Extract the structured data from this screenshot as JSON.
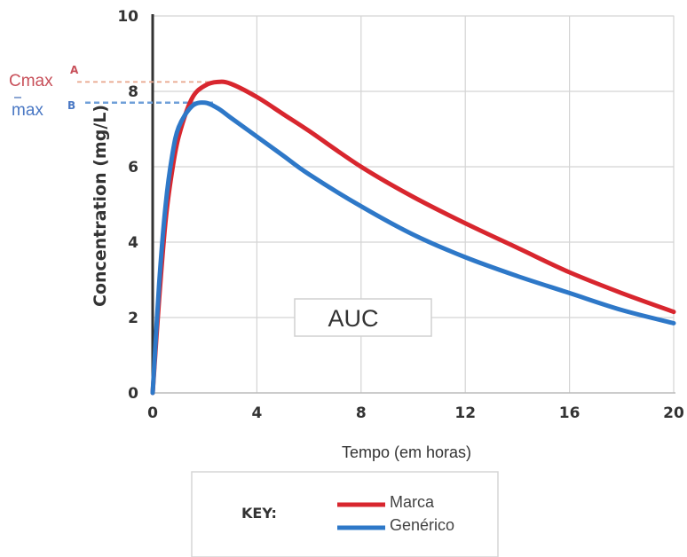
{
  "chart_data": {
    "type": "line",
    "title": "",
    "xlabel": "Tempo (em horas)",
    "ylabel": "Concentration (mg/L)",
    "xlim": [
      0,
      20
    ],
    "ylim": [
      0,
      10
    ],
    "x_ticks": [
      "0",
      "4",
      "8",
      "12",
      "16",
      "20"
    ],
    "y_ticks": [
      "0",
      "2",
      "4",
      "6",
      "8",
      "10"
    ],
    "grid": true,
    "x": [
      0,
      0.25,
      0.5,
      0.75,
      1,
      1.5,
      2,
      2.5,
      3,
      4,
      5,
      6,
      8,
      10,
      12,
      14,
      16,
      18,
      20
    ],
    "series": [
      {
        "name": "Marca",
        "color": "#d8262e",
        "values": [
          0,
          2.5,
          4.6,
          5.9,
          6.8,
          7.8,
          8.15,
          8.25,
          8.2,
          7.85,
          7.4,
          6.95,
          6.0,
          5.2,
          4.5,
          3.85,
          3.2,
          2.65,
          2.15
        ]
      },
      {
        "name": "Genérico",
        "color": "#2e78c8",
        "values": [
          0,
          2.9,
          5.0,
          6.3,
          7.05,
          7.6,
          7.7,
          7.55,
          7.3,
          6.8,
          6.3,
          5.8,
          4.95,
          4.2,
          3.6,
          3.1,
          2.65,
          2.2,
          1.85
        ]
      }
    ],
    "annotations": {
      "auc": "AUC",
      "cmax_a": {
        "label": "Cmax",
        "tag": "A",
        "value": 8.25
      },
      "cmax_b": {
        "label": "max",
        "tag": "B",
        "value": 7.7
      }
    },
    "legend": {
      "position": "bottom",
      "title": "KEY:"
    }
  }
}
